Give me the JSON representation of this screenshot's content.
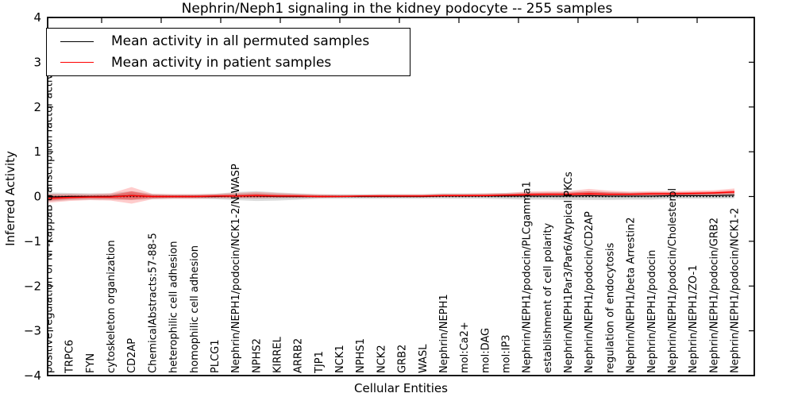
{
  "figure": {
    "title": "Nephrin/Neph1 signaling in the kidney podocyte -- 255 samples",
    "xlabel": "Cellular Entities",
    "ylabel": "Inferred Activity"
  },
  "legend": {
    "entries": [
      {
        "label": "Mean activity in all permuted samples",
        "color": "#000000"
      },
      {
        "label": "Mean activity in patient samples",
        "color": "#ff0000"
      }
    ]
  },
  "colors": {
    "permuted_line": "#000000",
    "patient_line": "#ff0000",
    "permuted_band": "rgba(130,130,130,0.28)",
    "permuted_band_inner": "rgba(130,130,130,0.25)",
    "patient_band": "rgba(255,0,0,0.20)",
    "patient_band_inner": "rgba(255,0,0,0.33)",
    "frame": "#000000",
    "background": "#ffffff"
  },
  "chart_data": {
    "type": "line",
    "title": "Nephrin/Neph1 signaling in the kidney podocyte -- 255 samples",
    "xlabel": "Cellular Entities",
    "ylabel": "Inferred Activity",
    "ylim": [
      -4,
      4
    ],
    "yticks": [
      -4,
      -3,
      -2,
      -1,
      0,
      1,
      2,
      3,
      4
    ],
    "grid": false,
    "legend_position": "upper left",
    "zero_reference_line": {
      "y": 0,
      "style": "dotted",
      "color": "#000000"
    },
    "categories": [
      "positive regulation of NF-kappaB transcription factor activity",
      "TRPC6",
      "FYN",
      "cytoskeleton organization",
      "CD2AP",
      "ChemicalAbstracts:57-88-5",
      "heterophilic cell adhesion",
      "homophilic cell adhesion",
      "PLCG1",
      "Nephrin/NEPH1/podocin/NCK1-2/N-WASP",
      "NPHS2",
      "KIRREL",
      "ARRB2",
      "TJP1",
      "NCK1",
      "NPHS1",
      "NCK2",
      "GRB2",
      "WASL",
      "Nephrin/NEPH1",
      "mol:Ca2+",
      "mol:DAG",
      "mol:IP3",
      "Nephrin/NEPH1/podocin/PLCgamma1",
      "establishment of cell polarity",
      "Nephrin/NEPH1Par3/Par6/Atypical PKCs",
      "Nephrin/NEPH1/podocin/CD2AP",
      "regulation of endocytosis",
      "Nephrin/NEPH1/beta Arrestin2",
      "Nephrin/NEPH1/podocin",
      "Nephrin/NEPH1/podocin/Cholesterol",
      "Nephrin/NEPH1/ZO-1",
      "Nephrin/NEPH1/podocin/GRB2",
      "Nephrin/NEPH1/podocin/NCK1-2"
    ],
    "series": [
      {
        "name": "Mean activity in all permuted samples",
        "color": "#000000",
        "values": [
          -0.01,
          0,
          0,
          0,
          0.02,
          0,
          0,
          0,
          0,
          0.01,
          0.01,
          0,
          0,
          0,
          0,
          0,
          0,
          0,
          0,
          0.01,
          0.01,
          0.01,
          0.01,
          0.01,
          0.01,
          0.01,
          0.02,
          0.01,
          0.01,
          0.01,
          0.02,
          0.02,
          0.02,
          0.03
        ],
        "band_lo": [
          -0.11,
          -0.08,
          -0.07,
          -0.07,
          -0.08,
          -0.06,
          -0.05,
          -0.05,
          -0.06,
          -0.08,
          -0.1,
          -0.09,
          -0.07,
          -0.05,
          -0.05,
          -0.05,
          -0.05,
          -0.05,
          -0.05,
          -0.05,
          -0.05,
          -0.05,
          -0.06,
          -0.07,
          -0.07,
          -0.08,
          -0.08,
          -0.08,
          -0.07,
          -0.07,
          -0.05,
          -0.05,
          -0.05,
          -0.04
        ],
        "band_hi": [
          0.09,
          0.08,
          0.07,
          0.07,
          0.12,
          0.06,
          0.05,
          0.05,
          0.06,
          0.1,
          0.12,
          0.09,
          0.07,
          0.05,
          0.05,
          0.05,
          0.05,
          0.05,
          0.05,
          0.07,
          0.07,
          0.07,
          0.08,
          0.09,
          0.09,
          0.1,
          0.12,
          0.1,
          0.09,
          0.09,
          0.09,
          0.09,
          0.09,
          0.1
        ]
      },
      {
        "name": "Mean activity in patient samples",
        "color": "#ff0000",
        "values": [
          -0.04,
          -0.02,
          -0.01,
          -0.01,
          0.02,
          0,
          0,
          0,
          0.01,
          0.01,
          0.02,
          0.01,
          0.01,
          0,
          0,
          0.01,
          0.01,
          0.01,
          0.01,
          0.02,
          0.02,
          0.02,
          0.03,
          0.04,
          0.05,
          0.05,
          0.06,
          0.05,
          0.05,
          0.06,
          0.06,
          0.07,
          0.08,
          0.1
        ],
        "band_lo": [
          -0.14,
          -0.1,
          -0.08,
          -0.09,
          -0.16,
          -0.06,
          -0.05,
          -0.05,
          -0.04,
          -0.04,
          -0.04,
          -0.03,
          -0.03,
          -0.03,
          -0.02,
          -0.02,
          -0.02,
          -0.02,
          -0.02,
          -0.01,
          -0.01,
          0,
          0,
          0,
          0,
          0,
          0,
          0,
          0.01,
          0.01,
          0.02,
          0.02,
          0.03,
          0.04
        ],
        "band_hi": [
          0.06,
          0.06,
          0.05,
          0.07,
          0.21,
          0.06,
          0.05,
          0.05,
          0.06,
          0.08,
          0.1,
          0.08,
          0.06,
          0.05,
          0.04,
          0.04,
          0.05,
          0.05,
          0.05,
          0.06,
          0.06,
          0.07,
          0.08,
          0.11,
          0.12,
          0.12,
          0.17,
          0.13,
          0.11,
          0.12,
          0.12,
          0.13,
          0.14,
          0.18
        ]
      }
    ]
  }
}
